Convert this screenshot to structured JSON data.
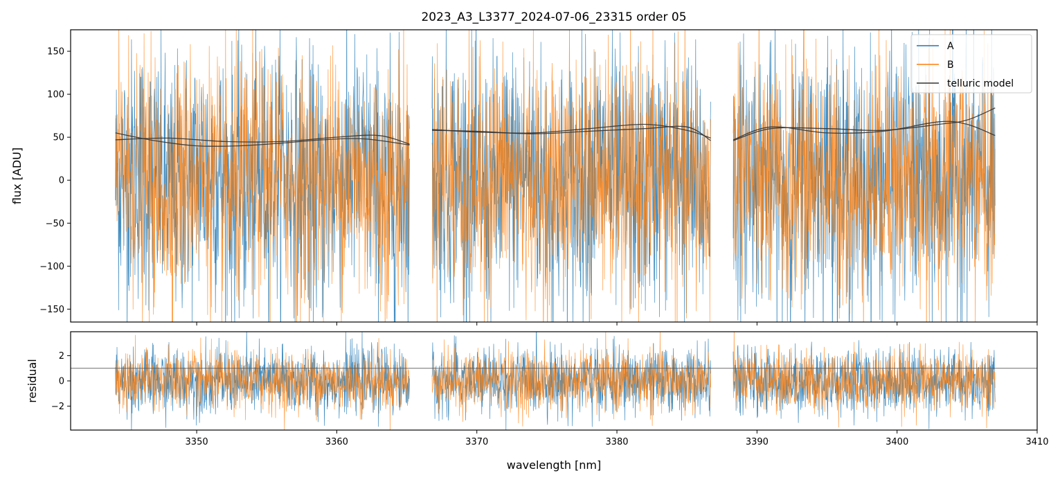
{
  "chart_data": {
    "type": "line",
    "title": "2023_A3_L3377_2024-07-06_23315  order 05",
    "xlabel": "wavelength [nm]",
    "xlim": [
      3341,
      3410
    ],
    "xticks": [
      3350,
      3360,
      3370,
      3380,
      3390,
      3400,
      3410
    ],
    "colors": {
      "A": "#1f77b4",
      "B": "#ff7f0e",
      "model": "#333333"
    },
    "legend": {
      "position": "top-right",
      "entries": [
        "A",
        "B",
        "telluric model"
      ]
    },
    "segments": [
      [
        3344.2,
        3365.2
      ],
      [
        3366.8,
        3386.7
      ],
      [
        3388.3,
        3407.0
      ]
    ],
    "panels": [
      {
        "name": "flux",
        "ylabel": "flux [ADU]",
        "ylim": [
          -165,
          175
        ],
        "yticks": [
          -150,
          -100,
          -50,
          0,
          50,
          100,
          150
        ],
        "series": [
          {
            "name": "A",
            "noise_amplitude": 75,
            "typical_range": [
              -150,
              175
            ]
          },
          {
            "name": "B",
            "noise_amplitude": 70,
            "typical_range": [
              -130,
              175
            ]
          }
        ],
        "telluric_model": [
          {
            "segment": 0,
            "curve": "A",
            "points": [
              [
                3344.2,
                55
              ],
              [
                3347,
                46
              ],
              [
                3350,
                40
              ],
              [
                3353,
                40
              ],
              [
                3356,
                43
              ],
              [
                3359,
                47
              ],
              [
                3362,
                48
              ],
              [
                3365.2,
                41
              ]
            ]
          },
          {
            "segment": 0,
            "curve": "B",
            "points": [
              [
                3344.2,
                47
              ],
              [
                3348,
                49
              ],
              [
                3352,
                45
              ],
              [
                3356,
                45
              ],
              [
                3360,
                50
              ],
              [
                3363,
                52
              ],
              [
                3365.2,
                42
              ]
            ]
          },
          {
            "segment": 1,
            "curve": "A",
            "points": [
              [
                3366.8,
                58
              ],
              [
                3370,
                57
              ],
              [
                3374,
                54
              ],
              [
                3378,
                57
              ],
              [
                3382,
                60
              ],
              [
                3385,
                62
              ],
              [
                3386.7,
                46
              ]
            ]
          },
          {
            "segment": 1,
            "curve": "B",
            "points": [
              [
                3366.8,
                59
              ],
              [
                3370,
                56
              ],
              [
                3374,
                55
              ],
              [
                3378,
                60
              ],
              [
                3382,
                65
              ],
              [
                3385,
                58
              ],
              [
                3386.7,
                49
              ]
            ]
          },
          {
            "segment": 2,
            "curve": "A",
            "points": [
              [
                3388.3,
                46
              ],
              [
                3391,
                60
              ],
              [
                3395,
                60
              ],
              [
                3399,
                58
              ],
              [
                3403,
                65
              ],
              [
                3405,
                70
              ],
              [
                3407.0,
                84
              ]
            ]
          },
          {
            "segment": 2,
            "curve": "B",
            "points": [
              [
                3388.3,
                47
              ],
              [
                3391,
                62
              ],
              [
                3395,
                55
              ],
              [
                3399,
                57
              ],
              [
                3403,
                68
              ],
              [
                3405,
                65
              ],
              [
                3407.0,
                52
              ]
            ]
          }
        ]
      },
      {
        "name": "residual",
        "ylabel": "residual",
        "ylim": [
          -3.9,
          3.9
        ],
        "yticks": [
          -2,
          0,
          2
        ],
        "series": [
          {
            "name": "A",
            "noise_amplitude": 1.3
          },
          {
            "name": "B",
            "noise_amplitude": 1.2
          }
        ],
        "reference_line": 1
      }
    ]
  }
}
